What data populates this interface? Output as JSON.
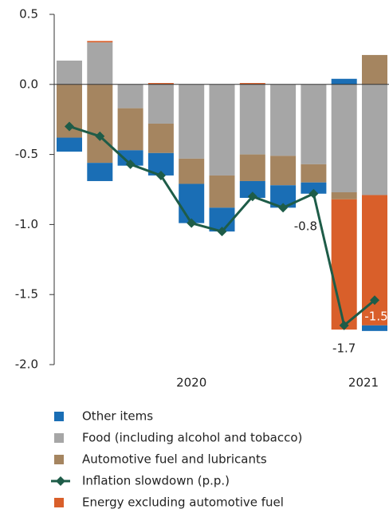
{
  "chart_data": {
    "type": "bar",
    "categories": [
      null,
      null,
      null,
      null,
      "2020",
      null,
      null,
      null,
      null,
      null,
      "2021"
    ],
    "ylim": [
      -2.0,
      0.5
    ],
    "yticks": [
      0.5,
      {
        "value": 0,
        "label": "0.0"
      },
      -0.5,
      {
        "value": -1,
        "label": "-1.0"
      },
      -1.5,
      {
        "value": -2,
        "label": "-2.0"
      }
    ],
    "series": [
      {
        "name": "Other items",
        "color": "#1a6eb5",
        "values": [
          -0.1,
          -0.13,
          -0.11,
          -0.16,
          -0.28,
          -0.17,
          -0.12,
          -0.16,
          -0.08,
          0.04,
          -0.04
        ]
      },
      {
        "name": "Food (including alcohol and tobacco)",
        "color": "#a6a6a6",
        "values": [
          0.17,
          0.3,
          -0.17,
          -0.28,
          -0.53,
          -0.65,
          -0.5,
          -0.51,
          -0.57,
          -0.77,
          -0.79
        ]
      },
      {
        "name": "Automotive fuel and lubricants",
        "color": "#a58560",
        "values": [
          -0.38,
          -0.56,
          -0.3,
          -0.21,
          -0.18,
          -0.23,
          -0.19,
          -0.21,
          -0.13,
          -0.05,
          0.21
        ]
      },
      {
        "name": "Inflation slowdown (p.p.)",
        "type": "line",
        "color": "#1e5c48",
        "values": [
          -0.3,
          -0.37,
          -0.57,
          -0.65,
          -0.99,
          -1.05,
          -0.8,
          -0.88,
          -0.78,
          -1.72,
          -1.54
        ],
        "value_labels": [
          null,
          null,
          null,
          null,
          null,
          null,
          null,
          null,
          "-0.8",
          "-1.7",
          "-1.5"
        ]
      },
      {
        "name": "Energy excluding automotive fuel",
        "color": "#d95f2a",
        "values": [
          0,
          0.01,
          0,
          0.01,
          0,
          0,
          0.01,
          0,
          0,
          -0.93,
          -0.93
        ]
      }
    ]
  }
}
